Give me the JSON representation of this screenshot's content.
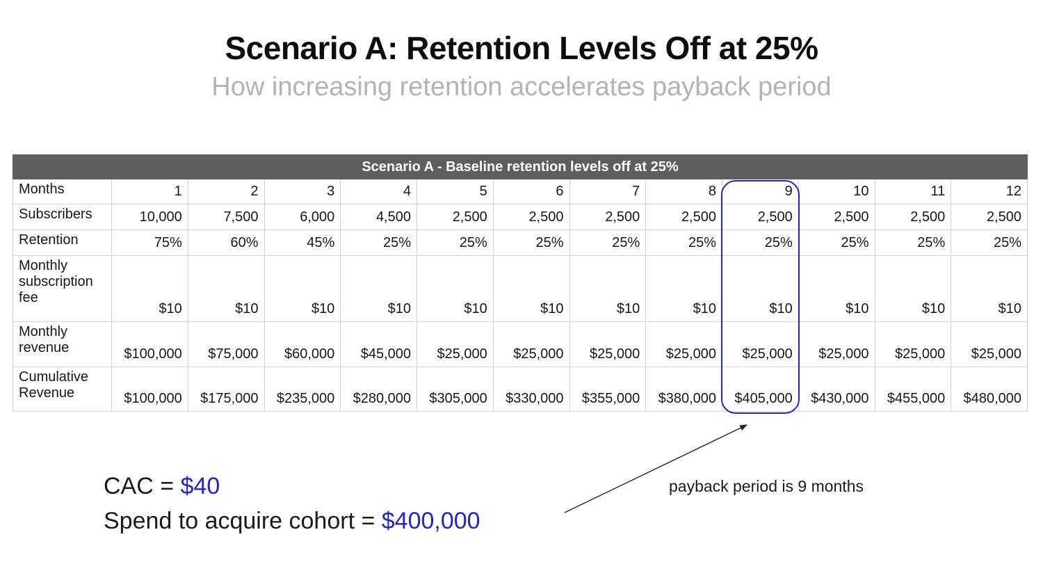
{
  "page": {
    "title": "Scenario A: Retention Levels Off at 25%",
    "subtitle": "How increasing retention accelerates payback period"
  },
  "chart_data": {
    "type": "table",
    "title": "Scenario A - Baseline retention levels off at 25%",
    "row_header": "Months",
    "categories": [
      "1",
      "2",
      "3",
      "4",
      "5",
      "6",
      "7",
      "8",
      "9",
      "10",
      "11",
      "12"
    ],
    "series": [
      {
        "name": "Subscribers",
        "values": [
          "10,000",
          "7,500",
          "6,000",
          "4,500",
          "2,500",
          "2,500",
          "2,500",
          "2,500",
          "2,500",
          "2,500",
          "2,500",
          "2,500"
        ]
      },
      {
        "name": "Retention",
        "values": [
          "75%",
          "60%",
          "45%",
          "25%",
          "25%",
          "25%",
          "25%",
          "25%",
          "25%",
          "25%",
          "25%",
          "25%"
        ]
      },
      {
        "name": "Monthly subscription fee",
        "values": [
          "$10",
          "$10",
          "$10",
          "$10",
          "$10",
          "$10",
          "$10",
          "$10",
          "$10",
          "$10",
          "$10",
          "$10"
        ]
      },
      {
        "name": "Monthly revenue",
        "values": [
          "$100,000",
          "$75,000",
          "$60,000",
          "$45,000",
          "$25,000",
          "$25,000",
          "$25,000",
          "$25,000",
          "$25,000",
          "$25,000",
          "$25,000",
          "$25,000"
        ]
      },
      {
        "name": "Cumulative Revenue",
        "values": [
          "$100,000",
          "$175,000",
          "$235,000",
          "$280,000",
          "$305,000",
          "$330,000",
          "$355,000",
          "$380,000",
          "$405,000",
          "$430,000",
          "$455,000",
          "$480,000"
        ]
      }
    ],
    "highlighted_column": "9"
  },
  "annotations": {
    "cac_label": "CAC = ",
    "cac_value": "$40",
    "spend_label": "Spend to acquire cohort = ",
    "spend_value": "$400,000",
    "payback_note": "payback period is 9 months"
  },
  "colors": {
    "accent_blue": "#2323cc",
    "table_header_bg": "#5e5e5e",
    "subtitle_gray": "#b3b3b3"
  }
}
